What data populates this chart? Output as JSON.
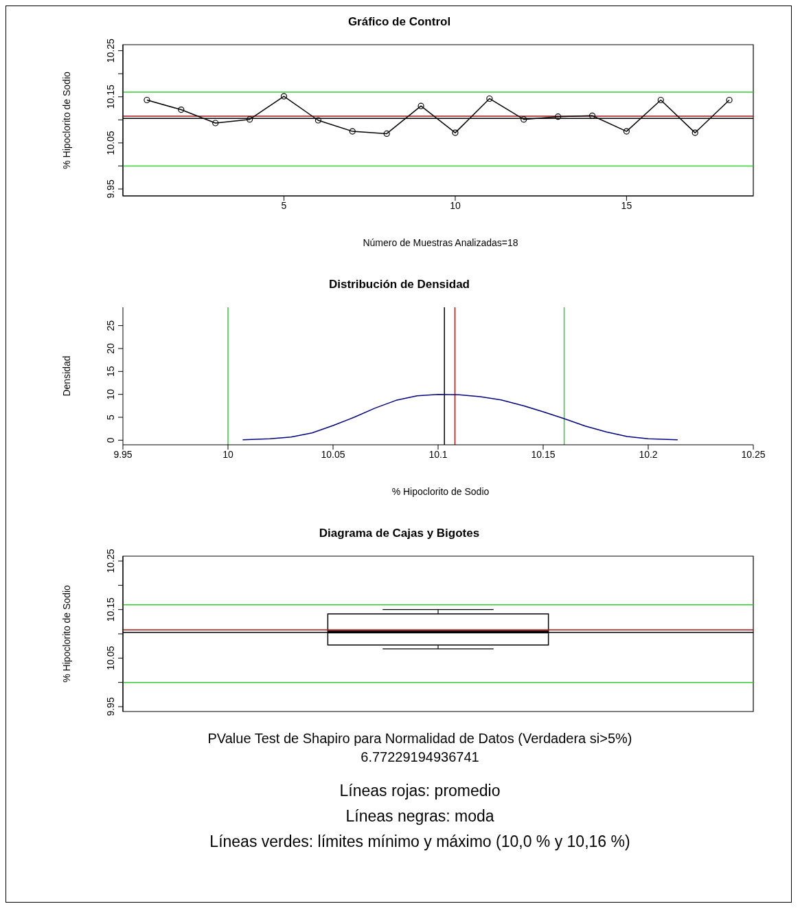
{
  "chart_data": [
    {
      "type": "line",
      "title": "Gráfico de Control",
      "xlabel": "Número de Muestras Analizadas=18",
      "ylabel": "% Hipoclorito de Sodio",
      "x": [
        1,
        2,
        3,
        4,
        5,
        6,
        7,
        8,
        9,
        10,
        11,
        12,
        13,
        14,
        15,
        16,
        17,
        18
      ],
      "series": [
        {
          "color": "#000000",
          "values": [
            10.143,
            10.122,
            10.093,
            10.101,
            10.151,
            10.099,
            10.075,
            10.07,
            10.13,
            10.072,
            10.146,
            10.101,
            10.107,
            10.109,
            10.075,
            10.143,
            10.072,
            10.143
          ]
        }
      ],
      "marker": "circle",
      "xlim": [
        0.3,
        18.7
      ],
      "xticks": [
        5,
        10,
        15
      ],
      "ylim": [
        9.935,
        10.263
      ],
      "yticks": [
        9.95,
        {
          "value": 10.0,
          "label": null
        },
        10.05,
        {
          "value": 10.1,
          "label": null
        },
        10.15,
        {
          "value": 10.2,
          "label": null
        },
        10.25
      ],
      "ref_lines": [
        {
          "axis": "y",
          "value": 10.0,
          "color": "#33cc33"
        },
        {
          "axis": "y",
          "value": 10.16,
          "color": "#33cc33"
        },
        {
          "axis": "y",
          "value": 10.108,
          "color": "#aa1111"
        },
        {
          "axis": "y",
          "value": 10.103,
          "color": "#000000"
        }
      ],
      "grid": false
    },
    {
      "type": "line",
      "title": "Distribución de Densidad",
      "xlabel": "% Hipoclorito de Sodio",
      "ylabel": "Densidad",
      "series": [
        {
          "color": "#000080",
          "x": [
            10.007,
            10.02,
            10.03,
            10.04,
            10.05,
            10.06,
            10.07,
            10.08,
            10.09,
            10.1,
            10.11,
            10.12,
            10.13,
            10.14,
            10.15,
            10.16,
            10.17,
            10.18,
            10.19,
            10.2,
            10.214
          ],
          "values": [
            0.1,
            0.3,
            0.7,
            1.6,
            3.2,
            5.0,
            7.0,
            8.7,
            9.7,
            10.0,
            9.9,
            9.5,
            8.8,
            7.6,
            6.2,
            4.7,
            3.1,
            1.8,
            0.8,
            0.3,
            0.1
          ]
        }
      ],
      "xlim": [
        9.95,
        10.25
      ],
      "xticks": [
        9.95,
        10.0,
        10.05,
        10.1,
        10.15,
        10.2,
        10.25
      ],
      "ylim": [
        -1,
        29
      ],
      "yticks": [
        0,
        5,
        10,
        15,
        20,
        25
      ],
      "ref_lines": [
        {
          "axis": "x",
          "value": 10.0,
          "color": "#33cc33"
        },
        {
          "axis": "x",
          "value": 10.16,
          "color": "#33cc33"
        },
        {
          "axis": "x",
          "value": 10.108,
          "color": "#aa1111"
        },
        {
          "axis": "x",
          "value": 10.103,
          "color": "#000000"
        }
      ],
      "grid": false
    },
    {
      "type": "box",
      "title": "Diagrama de Cajas y Bigotes",
      "ylabel": "% Hipoclorito de Sodio",
      "categories": [
        null
      ],
      "boxes": [
        {
          "low": 10.069,
          "q1": 10.077,
          "median": 10.104,
          "q3": 10.141,
          "high": 10.15
        }
      ],
      "ylim": [
        9.94,
        10.26
      ],
      "yticks": [
        9.95,
        {
          "value": 10.0,
          "label": null
        },
        10.05,
        {
          "value": 10.1,
          "label": null
        },
        10.15,
        {
          "value": 10.2,
          "label": null
        },
        10.25
      ],
      "tick_labels": "y",
      "ref_lines": [
        {
          "axis": "y",
          "value": 10.0,
          "color": "#33cc33"
        },
        {
          "axis": "y",
          "value": 10.16,
          "color": "#33cc33"
        },
        {
          "axis": "y",
          "value": 10.108,
          "color": "#aa1111"
        },
        {
          "axis": "y",
          "value": 10.103,
          "color": "#000000"
        }
      ],
      "grid": false,
      "annotations": [
        "PValue Test de Shapiro para Normalidad de Datos (Verdadera si>5%)",
        "6.77229194936741",
        "Líneas rojas: promedio",
        "Líneas negras: moda",
        "Líneas verdes: límites mínimo y máximo (10,0 % y 10,16 %)"
      ]
    }
  ]
}
